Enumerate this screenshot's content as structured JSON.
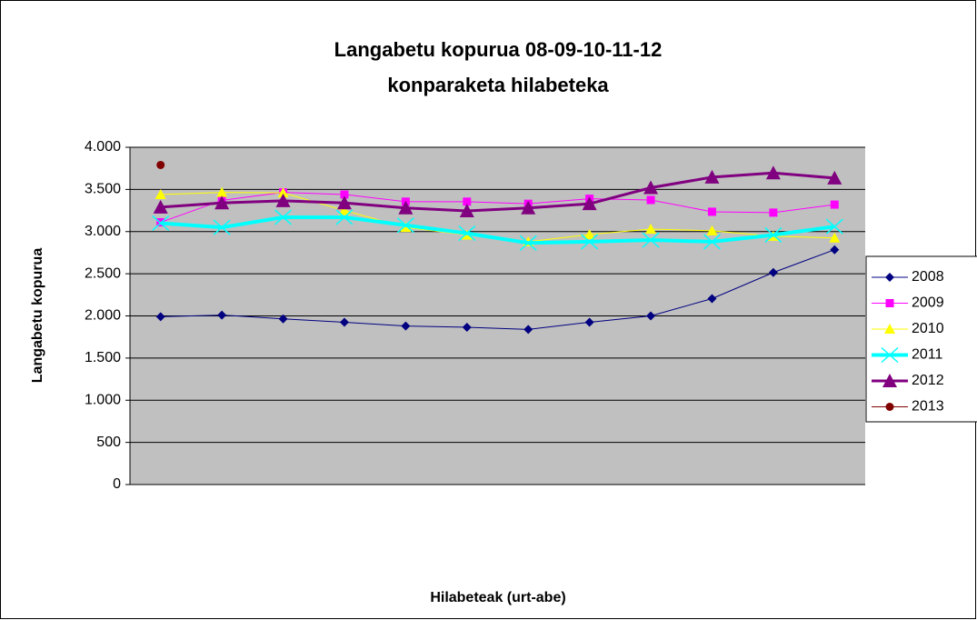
{
  "chart_data": {
    "type": "line",
    "title": [
      "Langabetu kopurua 08-09-10-11-12",
      "konparaketa hilabeteka"
    ],
    "y_label": "Langabetu kopurua",
    "x_label": "Hilabeteak (urt-abe)",
    "categories": [
      null,
      null,
      null,
      null,
      null,
      null,
      null,
      null,
      null,
      null,
      null,
      null
    ],
    "ylim": [
      0,
      4000
    ],
    "yticks": [
      0,
      500,
      {
        "value": 1000,
        "label": "1.000"
      },
      {
        "value": 1500,
        "label": "1.500"
      },
      {
        "value": 2000,
        "label": "2.000"
      },
      {
        "value": 2500,
        "label": "2.500"
      },
      {
        "value": 3000,
        "label": "3.000"
      },
      {
        "value": 3500,
        "label": "3.500"
      },
      {
        "value": 4000,
        "label": "4.000"
      }
    ],
    "grid": true,
    "plot_background": "#c0c0c0",
    "legend": "right",
    "series": [
      {
        "name": "2008",
        "color": "#000080",
        "marker": "diamond",
        "line_width": 1,
        "values": [
          1990,
          2010,
          1965,
          1925,
          1880,
          1865,
          1840,
          1925,
          2000,
          2205,
          2515,
          2785
        ]
      },
      {
        "name": "2009",
        "color": "#ff00ff",
        "marker": "square",
        "line_width": 1,
        "values": [
          3110,
          3370,
          3465,
          3440,
          3355,
          3355,
          3330,
          3390,
          3375,
          3235,
          3225,
          3320
        ]
      },
      {
        "name": "2010",
        "color": "#ffff00",
        "marker": "triangle",
        "line_width": 1,
        "values": [
          3440,
          3465,
          3460,
          3250,
          3050,
          2960,
          2880,
          2965,
          3030,
          3010,
          2945,
          2925
        ]
      },
      {
        "name": "2011",
        "color": "#00ffff",
        "marker": "x",
        "line_width": 4,
        "values": [
          3100,
          3050,
          3170,
          3170,
          3075,
          2980,
          2865,
          2880,
          2900,
          2880,
          2960,
          3060
        ]
      },
      {
        "name": "2012",
        "color": "#800080",
        "marker": "bigtriangle",
        "line_width": 3,
        "values": [
          3290,
          3340,
          3365,
          3340,
          3280,
          3245,
          3280,
          3330,
          3520,
          3645,
          3695,
          3635
        ]
      },
      {
        "name": "2013",
        "color": "#800000",
        "marker": "circle",
        "line_width": 1,
        "values": [
          3790,
          null,
          null,
          null,
          null,
          null,
          null,
          null,
          null,
          null,
          null,
          null
        ]
      }
    ]
  }
}
